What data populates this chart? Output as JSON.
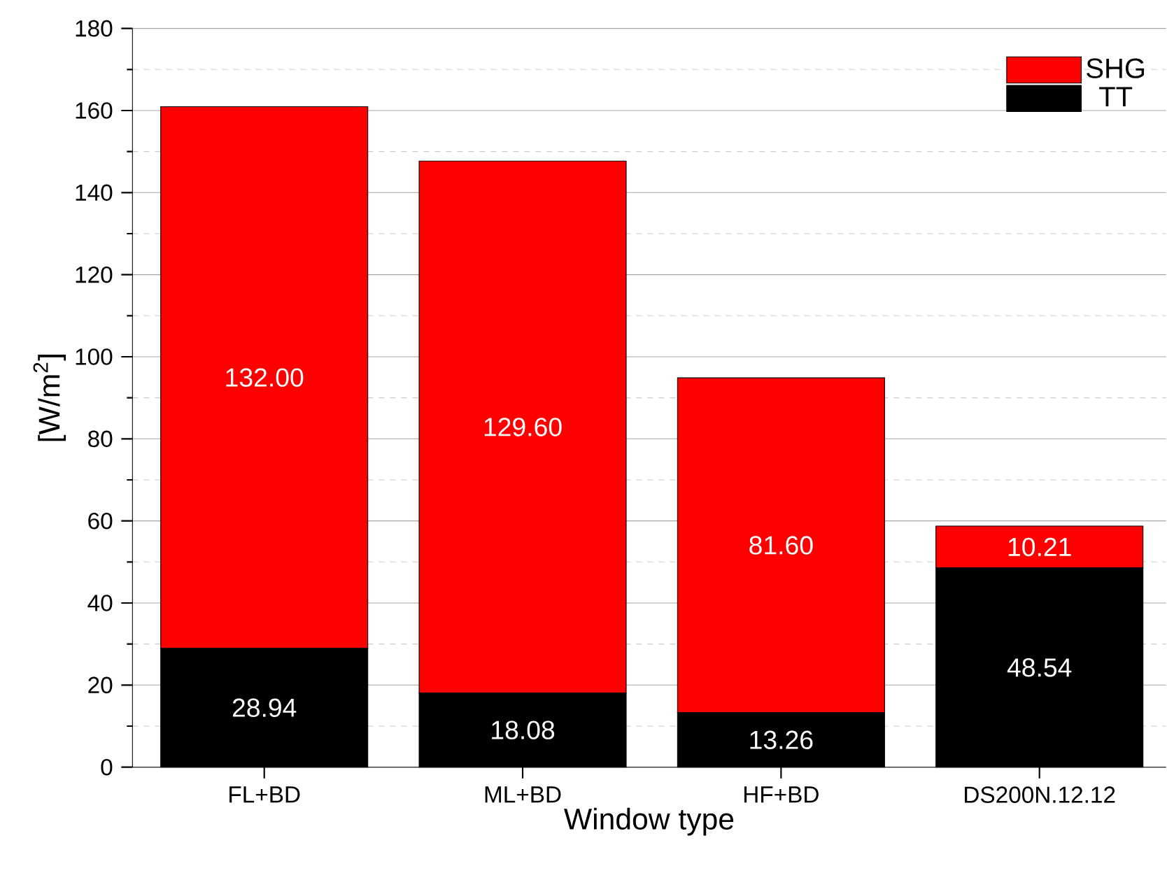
{
  "chart_data": {
    "type": "bar",
    "stacked": true,
    "xlabel": "Window type",
    "ylabel": "[W/m$^{2}$]",
    "categories": [
      "FL+BD",
      "ML+BD",
      "HF+BD",
      "DS200N.12.12"
    ],
    "series": [
      {
        "name": "TT",
        "color": "#000000",
        "values": [
          28.94,
          18.08,
          13.26,
          48.54
        ],
        "value_labels": [
          "28.94",
          "18.08",
          "13.26",
          "48.54"
        ]
      },
      {
        "name": "SHG",
        "color": "#ff0000",
        "values": [
          132.0,
          129.6,
          81.6,
          10.21
        ],
        "value_labels": [
          "132.00",
          "129.60",
          "81.60",
          "10.21"
        ]
      }
    ],
    "ylim": [
      0,
      180
    ],
    "yticks": [
      0,
      20,
      40,
      60,
      80,
      100,
      120,
      140,
      160,
      180
    ],
    "grid": "y",
    "legend": "top right"
  }
}
